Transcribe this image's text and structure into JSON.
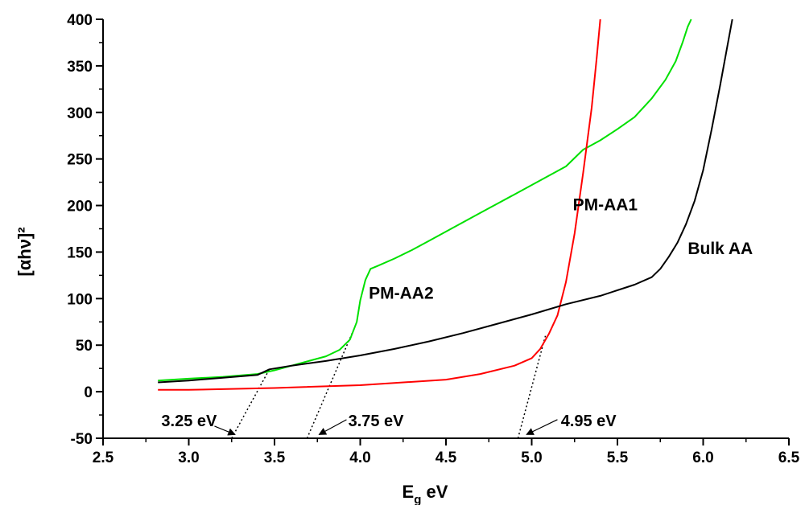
{
  "chart_data": {
    "type": "line",
    "title": "",
    "xlabel": "E",
    "xlabel_sub": "g",
    "xlabel_unit": " eV",
    "ylabel": "[αhν]²",
    "xlim": [
      2.5,
      6.5
    ],
    "ylim": [
      -50,
      400
    ],
    "xticks": [
      "2.5",
      "3.0",
      "3.5",
      "4.0",
      "4.5",
      "5.0",
      "5.5",
      "6.0",
      "6.5"
    ],
    "yticks": [
      "-50",
      "0",
      "50",
      "100",
      "150",
      "200",
      "250",
      "300",
      "350",
      "400"
    ],
    "grid": false,
    "legend": "none",
    "series": [
      {
        "name": "PM-AA2",
        "color": "#00e000",
        "x": [
          2.82,
          3.0,
          3.2,
          3.4,
          3.5,
          3.6,
          3.7,
          3.8,
          3.88,
          3.94,
          3.98,
          4.0,
          4.03,
          4.06,
          4.1,
          4.2,
          4.3,
          4.4,
          4.5,
          4.6,
          4.7,
          4.8,
          4.9,
          5.0,
          5.1,
          5.2,
          5.3,
          5.4,
          5.5,
          5.6,
          5.7,
          5.78,
          5.84,
          5.88,
          5.91,
          5.93
        ],
        "y": [
          12,
          14,
          16,
          19,
          23,
          28,
          33,
          38,
          45,
          56,
          75,
          98,
          120,
          132,
          135,
          143,
          152,
          162,
          172,
          182,
          192,
          202,
          212,
          222,
          232,
          242,
          260,
          270,
          282,
          295,
          315,
          335,
          355,
          375,
          392,
          400
        ]
      },
      {
        "name": "PM-AA1",
        "color": "#ff0000",
        "x": [
          2.82,
          3.0,
          3.5,
          4.0,
          4.5,
          4.7,
          4.9,
          5.0,
          5.05,
          5.1,
          5.15,
          5.2,
          5.25,
          5.3,
          5.35,
          5.38,
          5.4
        ],
        "y": [
          2,
          2,
          4,
          7,
          13,
          19,
          28,
          36,
          46,
          62,
          82,
          118,
          170,
          235,
          305,
          360,
          400
        ]
      },
      {
        "name": "Bulk AA",
        "color": "#000000",
        "x": [
          2.82,
          3.0,
          3.2,
          3.4,
          3.47,
          3.6,
          3.8,
          4.0,
          4.2,
          4.4,
          4.6,
          4.8,
          5.0,
          5.2,
          5.4,
          5.6,
          5.7,
          5.75,
          5.8,
          5.85,
          5.9,
          5.95,
          6.0,
          6.05,
          6.1,
          6.14,
          6.17
        ],
        "y": [
          10,
          12,
          15,
          18,
          24,
          28,
          33,
          39,
          46,
          54,
          63,
          73,
          83,
          94,
          103,
          115,
          123,
          132,
          145,
          160,
          180,
          205,
          238,
          282,
          330,
          370,
          400
        ]
      }
    ],
    "labels": [
      {
        "text": "PM-AA2",
        "x": 4.05,
        "y": 100
      },
      {
        "text": "PM-AA1",
        "x": 5.24,
        "y": 195
      },
      {
        "text": "Bulk AA",
        "x": 5.91,
        "y": 148
      }
    ],
    "fit_lines": [
      {
        "x1": 3.25,
        "y1": -50,
        "x2": 3.47,
        "y2": 24
      },
      {
        "x1": 3.69,
        "y1": -50,
        "x2": 3.96,
        "y2": 66
      },
      {
        "x1": 4.92,
        "y1": -50,
        "x2": 5.08,
        "y2": 60
      }
    ],
    "annotations": [
      {
        "text": "3.25 eV",
        "text_x": 2.84,
        "text_y": -37,
        "arrow_from_x": 3.15,
        "arrow_from_y": -37,
        "arrow_to_x": 3.27,
        "arrow_to_y": -46
      },
      {
        "text": "3.75 eV",
        "text_x": 3.93,
        "text_y": -37,
        "arrow_from_x": 3.92,
        "arrow_from_y": -30,
        "arrow_to_x": 3.76,
        "arrow_to_y": -46
      },
      {
        "text": "4.95 eV",
        "text_x": 5.17,
        "text_y": -37,
        "arrow_from_x": 5.15,
        "arrow_from_y": -30,
        "arrow_to_x": 4.97,
        "arrow_to_y": -46
      }
    ]
  }
}
